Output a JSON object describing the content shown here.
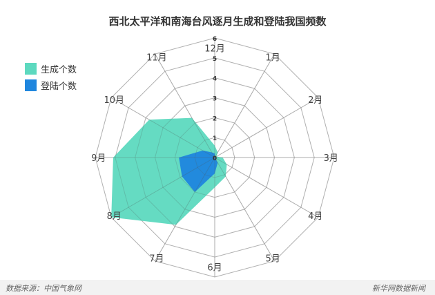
{
  "chart_data": {
    "type": "radar",
    "title": "西北太平洋和南海台风逐月生成和登陆我国频数",
    "categories": [
      "12月",
      "1月",
      "2月",
      "3月",
      "4月",
      "5月",
      "6月",
      "7月",
      "8月",
      "9月",
      "10月",
      "11月"
    ],
    "radial_ticks": [
      "0",
      "1",
      "2",
      "3",
      "4",
      "5",
      "6"
    ],
    "rlim": [
      0,
      6
    ],
    "grid": true,
    "legend_position": "top-left",
    "series": [
      {
        "name": "生成个数",
        "color": "#5dd9bf",
        "values": [
          0.6,
          0.3,
          0.1,
          0.4,
          0.7,
          1.1,
          1.5,
          3.9,
          6.0,
          5.1,
          3.8,
          2.3
        ]
      },
      {
        "name": "登陆个数",
        "color": "#1f86de",
        "values": [
          0.2,
          0.0,
          0.0,
          0.0,
          0.0,
          0.3,
          0.8,
          2.0,
          1.9,
          1.8,
          0.7,
          0.3
        ]
      }
    ]
  },
  "footer": {
    "source": "数据来源：中国气象网",
    "credit": "新华网数据新闻"
  }
}
